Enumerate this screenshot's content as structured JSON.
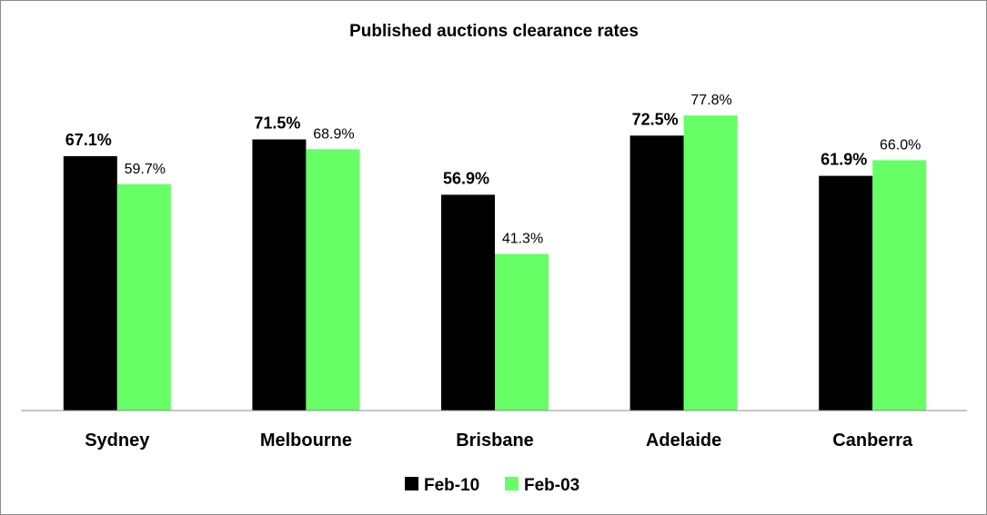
{
  "chart_data": {
    "type": "bar",
    "title": "Published auctions clearance rates",
    "xlabel": "",
    "ylabel": "",
    "ylim": [
      0,
      80
    ],
    "grid": false,
    "legend_position": "bottom",
    "categories": [
      "Sydney",
      "Melbourne",
      "Brisbane",
      "Adelaide",
      "Canberra"
    ],
    "series": [
      {
        "name": "Feb-10",
        "color": "#000000",
        "values": [
          67.1,
          71.5,
          56.9,
          72.5,
          61.9
        ],
        "labels": [
          "67.1%",
          "71.5%",
          "56.9%",
          "72.5%",
          "61.9%"
        ]
      },
      {
        "name": "Feb-03",
        "color": "#66ff66",
        "values": [
          59.7,
          68.9,
          41.3,
          77.8,
          66.0
        ],
        "labels": [
          "59.7%",
          "68.9%",
          "41.3%",
          "77.8%",
          "66.0%"
        ]
      }
    ]
  }
}
